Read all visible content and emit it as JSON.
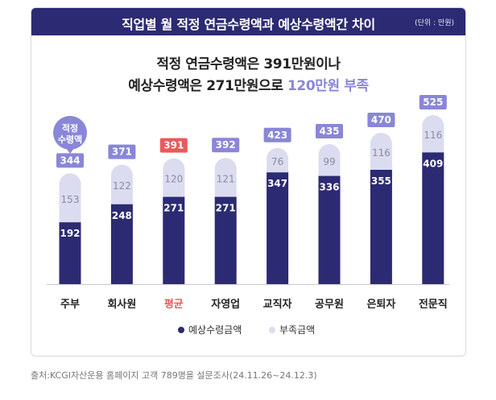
{
  "banner": {
    "title": "직업별 월 적정 연금수령액과 예상수령액간 차이",
    "unit": "(단위 : 만원)"
  },
  "headline": {
    "line1": "적정 연금수령액은 391만원이나",
    "line2_prefix": "예상수령액은 271만원으로 ",
    "line2_accent": "120만원 부족"
  },
  "callout": {
    "line1": "적정",
    "line2": "수령액"
  },
  "colors": {
    "expected": "#2c2a72",
    "shortfall": "#dcdcf0",
    "total_box": "#8a86d8",
    "highlight": "#e85a5a"
  },
  "chart_data": {
    "type": "bar",
    "stacked": true,
    "categories": [
      "주부",
      "회사원",
      "평균",
      "자영업",
      "교직자",
      "공무원",
      "은퇴자",
      "전문직"
    ],
    "highlight_category": "평균",
    "series": [
      {
        "name": "예상수령금액",
        "values": [
          192,
          248,
          271,
          271,
          347,
          336,
          355,
          409
        ]
      },
      {
        "name": "부족금액",
        "values": [
          153,
          122,
          120,
          121,
          76,
          99,
          116,
          116
        ]
      }
    ],
    "totals": [
      344,
      371,
      391,
      392,
      423,
      435,
      470,
      525
    ],
    "legend_position": "bottom"
  },
  "source": "출처:KCGI자산운용 홈페이지 고객 789명을 설문조사(24.11.26~24.12.3)"
}
